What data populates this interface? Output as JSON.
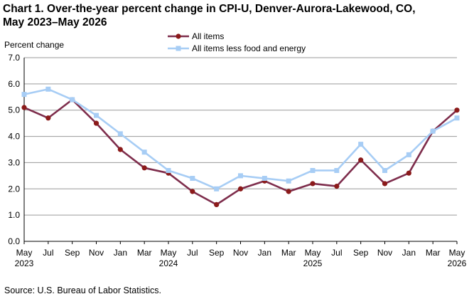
{
  "title_line1": "Chart 1. Over-the-year percent change in CPI-U, Denver-Aurora-Lakewood, CO,",
  "title_line2": "May 2023–May 2026",
  "source": "Source: U.S. Bureau of Labor Statistics.",
  "colors": {
    "all_items": "#7e2d4c",
    "all_items_marker": "#8b1a1a",
    "core": "#a7cdf5",
    "core_marker": "#a7cdf5",
    "grid": "#9a9a9a"
  },
  "chart_data": {
    "type": "line",
    "ylabel": "Percent change",
    "ylim": [
      0,
      7
    ],
    "yticks": [
      "0.0",
      "1.0",
      "2.0",
      "3.0",
      "4.0",
      "5.0",
      "6.0",
      "7.0"
    ],
    "grid": true,
    "legend_position": "top-center",
    "x": [
      "May 2023",
      "Jul 2023",
      "Sep 2023",
      "Nov 2023",
      "Jan 2024",
      "Mar 2024",
      "May 2024",
      "Jul 2024",
      "Sep 2024",
      "Nov 2024",
      "Jan 2025",
      "Mar 2025",
      "May 2025",
      "Jul 2025",
      "Sep 2025",
      "Nov 2025",
      "Jan 2026",
      "Mar 2026",
      "May 2026"
    ],
    "xtick_labels": [
      {
        "month": "May",
        "year": "2023"
      },
      {
        "month": "Jul",
        "year": ""
      },
      {
        "month": "Sep",
        "year": ""
      },
      {
        "month": "Nov",
        "year": ""
      },
      {
        "month": "Jan",
        "year": ""
      },
      {
        "month": "Mar",
        "year": ""
      },
      {
        "month": "May",
        "year": "2024"
      },
      {
        "month": "Jul",
        "year": ""
      },
      {
        "month": "Sep",
        "year": ""
      },
      {
        "month": "Nov",
        "year": ""
      },
      {
        "month": "Jan",
        "year": ""
      },
      {
        "month": "Mar",
        "year": ""
      },
      {
        "month": "May",
        "year": "2025"
      },
      {
        "month": "Jul",
        "year": ""
      },
      {
        "month": "Sep",
        "year": ""
      },
      {
        "month": "Nov",
        "year": ""
      },
      {
        "month": "Jan",
        "year": ""
      },
      {
        "month": "Mar",
        "year": ""
      },
      {
        "month": "May",
        "year": "2026"
      }
    ],
    "series": [
      {
        "name": "All items",
        "key": "all_items",
        "marker": "circle",
        "values": [
          5.1,
          4.7,
          5.4,
          4.5,
          3.5,
          2.8,
          2.6,
          1.9,
          1.4,
          2.0,
          2.3,
          1.9,
          2.2,
          2.1,
          3.1,
          2.2,
          2.6,
          4.2,
          5.0
        ]
      },
      {
        "name": "All items less food and energy",
        "key": "core",
        "marker": "square",
        "values": [
          5.6,
          5.8,
          5.4,
          4.8,
          4.1,
          3.4,
          2.7,
          2.4,
          2.0,
          2.5,
          2.4,
          2.3,
          2.7,
          2.7,
          3.7,
          2.7,
          3.3,
          4.2,
          4.7
        ]
      }
    ]
  }
}
